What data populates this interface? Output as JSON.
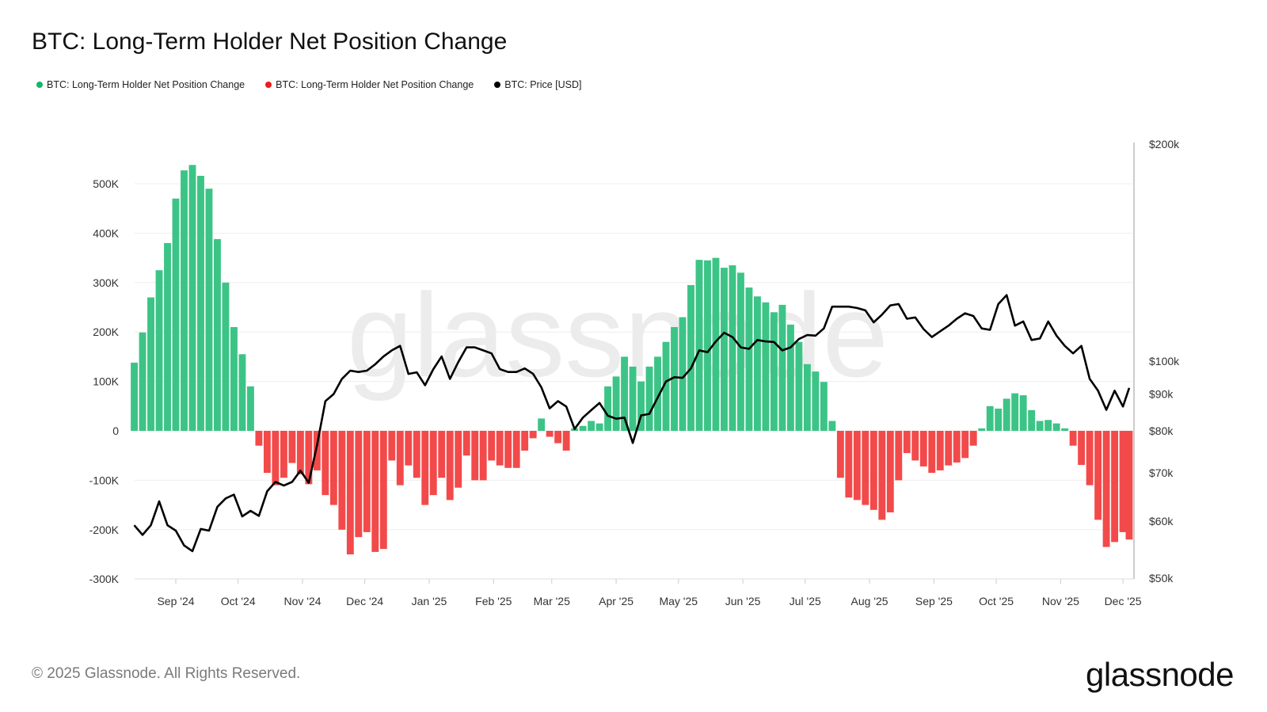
{
  "title": "BTC: Long-Term Holder Net Position Change",
  "legend": [
    {
      "label": "BTC: Long-Term Holder Net Position Change",
      "color": "#12b76a"
    },
    {
      "label": "BTC: Long-Term Holder Net Position Change",
      "color": "#f01b1b"
    },
    {
      "label": "BTC: Price [USD]",
      "color": "#000000"
    }
  ],
  "footer": "© 2025 Glassnode. All Rights Reserved.",
  "logo": "glassnode",
  "watermark": "glassnode",
  "chart_data": {
    "type": "bar",
    "title": "BTC: Long-Term Holder Net Position Change",
    "grid": true,
    "legend_position": "top-left",
    "colors": {
      "positive": "#3cc486",
      "negative": "#f24a4a",
      "price": "#000000"
    },
    "x_ticks": [
      {
        "date": "2024-09-01",
        "label": "Sep '24"
      },
      {
        "date": "2024-10-01",
        "label": "Oct '24"
      },
      {
        "date": "2024-11-01",
        "label": "Nov '24"
      },
      {
        "date": "2024-12-01",
        "label": "Dec '24"
      },
      {
        "date": "2025-01-01",
        "label": "Jan '25"
      },
      {
        "date": "2025-02-01",
        "label": "Feb '25"
      },
      {
        "date": "2025-03-01",
        "label": "Mar '25"
      },
      {
        "date": "2025-04-01",
        "label": "Apr '25"
      },
      {
        "date": "2025-05-01",
        "label": "May '25"
      },
      {
        "date": "2025-06-01",
        "label": "Jun '25"
      },
      {
        "date": "2025-07-01",
        "label": "Jul '25"
      },
      {
        "date": "2025-08-01",
        "label": "Aug '25"
      },
      {
        "date": "2025-09-01",
        "label": "Sep '25"
      },
      {
        "date": "2025-10-01",
        "label": "Oct '25"
      },
      {
        "date": "2025-11-01",
        "label": "Nov '25"
      },
      {
        "date": "2025-12-01",
        "label": "Dec '25"
      }
    ],
    "y_left": {
      "ylim": [
        -300000,
        500000
      ],
      "ticks": [
        {
          "value": 500000,
          "label": "500K"
        },
        {
          "value": 400000,
          "label": "400K"
        },
        {
          "value": 300000,
          "label": "300K"
        },
        {
          "value": 200000,
          "label": "200K"
        },
        {
          "value": 100000,
          "label": "100K"
        },
        {
          "value": 0,
          "label": "0"
        },
        {
          "value": -100000,
          "label": "-100K"
        },
        {
          "value": -200000,
          "label": "-200K"
        },
        {
          "value": -300000,
          "label": "-300K"
        }
      ]
    },
    "y_right": {
      "scale": "log",
      "ylim": [
        50000,
        200000
      ],
      "ticks": [
        {
          "value": 200000,
          "label": "$200k"
        },
        {
          "value": 100000,
          "label": "$100k"
        },
        {
          "value": 90000,
          "label": "$90k"
        },
        {
          "value": 80000,
          "label": "$80k"
        },
        {
          "value": 70000,
          "label": "$70k"
        },
        {
          "value": 60000,
          "label": "$60k"
        },
        {
          "value": 50000,
          "label": "$50k"
        }
      ]
    },
    "x": [
      "2024-08-12",
      "2024-08-16",
      "2024-08-20",
      "2024-08-24",
      "2024-08-28",
      "2024-09-01",
      "2024-09-05",
      "2024-09-09",
      "2024-09-13",
      "2024-09-17",
      "2024-09-21",
      "2024-09-25",
      "2024-09-29",
      "2024-10-03",
      "2024-10-07",
      "2024-10-11",
      "2024-10-15",
      "2024-10-19",
      "2024-10-23",
      "2024-10-27",
      "2024-10-31",
      "2024-11-04",
      "2024-11-08",
      "2024-11-12",
      "2024-11-16",
      "2024-11-20",
      "2024-11-24",
      "2024-11-28",
      "2024-12-02",
      "2024-12-06",
      "2024-12-10",
      "2024-12-14",
      "2024-12-18",
      "2024-12-22",
      "2024-12-26",
      "2024-12-30",
      "2025-01-03",
      "2025-01-07",
      "2025-01-11",
      "2025-01-15",
      "2025-01-19",
      "2025-01-23",
      "2025-01-27",
      "2025-01-31",
      "2025-02-04",
      "2025-02-08",
      "2025-02-12",
      "2025-02-16",
      "2025-02-20",
      "2025-02-24",
      "2025-02-28",
      "2025-03-04",
      "2025-03-08",
      "2025-03-12",
      "2025-03-16",
      "2025-03-20",
      "2025-03-24",
      "2025-03-28",
      "2025-04-01",
      "2025-04-05",
      "2025-04-09",
      "2025-04-13",
      "2025-04-17",
      "2025-04-21",
      "2025-04-25",
      "2025-04-29",
      "2025-05-03",
      "2025-05-07",
      "2025-05-11",
      "2025-05-15",
      "2025-05-19",
      "2025-05-23",
      "2025-05-27",
      "2025-05-31",
      "2025-06-04",
      "2025-06-08",
      "2025-06-12",
      "2025-06-16",
      "2025-06-20",
      "2025-06-24",
      "2025-06-28",
      "2025-07-02",
      "2025-07-06",
      "2025-07-10",
      "2025-07-14",
      "2025-07-18",
      "2025-07-22",
      "2025-07-26",
      "2025-07-30",
      "2025-08-03",
      "2025-08-07",
      "2025-08-11",
      "2025-08-15",
      "2025-08-19",
      "2025-08-23",
      "2025-08-27",
      "2025-08-31",
      "2025-09-04",
      "2025-09-08",
      "2025-09-12",
      "2025-09-16",
      "2025-09-20",
      "2025-09-24",
      "2025-09-28",
      "2025-10-02",
      "2025-10-06",
      "2025-10-10",
      "2025-10-14",
      "2025-10-18",
      "2025-10-22",
      "2025-10-26",
      "2025-10-30",
      "2025-11-03",
      "2025-11-07",
      "2025-11-11",
      "2025-11-15",
      "2025-11-19",
      "2025-11-23",
      "2025-11-27",
      "2025-12-01",
      "2025-12-04"
    ],
    "series": [
      {
        "name": "BTC: Long-Term Holder Net Position Change",
        "axis": "left",
        "type": "bar",
        "values": [
          138000,
          199000,
          270000,
          325000,
          380000,
          470000,
          527000,
          538000,
          516000,
          490000,
          388000,
          300000,
          210000,
          155000,
          90000,
          -30000,
          -85000,
          -110000,
          -95000,
          -65000,
          -88000,
          -108000,
          -80000,
          -130000,
          -150000,
          -200000,
          -250000,
          -215000,
          -205000,
          -245000,
          -239000,
          -60000,
          -110000,
          -70000,
          -95000,
          -150000,
          -130000,
          -95000,
          -140000,
          -115000,
          -50000,
          -100000,
          -100000,
          -60000,
          -70000,
          -75000,
          -75000,
          -40000,
          -15000,
          25000,
          -12000,
          -25000,
          -40000,
          5000,
          10000,
          20000,
          15000,
          90000,
          110000,
          150000,
          130000,
          100000,
          130000,
          150000,
          180000,
          210000,
          230000,
          295000,
          346000,
          345000,
          350000,
          330000,
          335000,
          320000,
          290000,
          272000,
          260000,
          240000,
          255000,
          215000,
          180000,
          135000,
          120000,
          99000,
          20000,
          -95000,
          -135000,
          -140000,
          -150000,
          -160000,
          -180000,
          -165000,
          -100000,
          -45000,
          -60000,
          -72000,
          -85000,
          -80000,
          -70000,
          -64000,
          -55000,
          -30000,
          5000,
          50000,
          45000,
          65000,
          76000,
          72000,
          42000,
          20000,
          22000,
          15000,
          5000,
          -30000,
          -69000,
          -110000,
          -180000,
          -235000,
          -225000,
          -205000,
          -220000
        ]
      },
      {
        "name": "BTC: Price [USD]",
        "axis": "right",
        "type": "line",
        "values": [
          59200,
          57400,
          59200,
          63900,
          59200,
          58200,
          55500,
          54500,
          58500,
          58200,
          62800,
          64500,
          65300,
          60900,
          62000,
          61000,
          66000,
          68000,
          67200,
          68000,
          70500,
          67800,
          76500,
          88000,
          90000,
          94500,
          97000,
          96600,
          97000,
          99000,
          101500,
          103500,
          105000,
          96000,
          96500,
          92600,
          97500,
          101500,
          94500,
          99700,
          104500,
          104500,
          103500,
          102500,
          97500,
          96600,
          96600,
          97700,
          96000,
          92000,
          86000,
          88000,
          86500,
          80500,
          83500,
          85500,
          87500,
          84000,
          83200,
          83500,
          77000,
          84100,
          84500,
          89000,
          93700,
          95000,
          94800,
          97700,
          103500,
          102900,
          106500,
          109500,
          108000,
          104500,
          104000,
          107000,
          106500,
          106300,
          103500,
          104500,
          107300,
          108700,
          108500,
          111000,
          119000,
          119000,
          119000,
          118500,
          117600,
          113200,
          116000,
          119500,
          120000,
          114500,
          115000,
          110800,
          108000,
          110000,
          112000,
          114500,
          116500,
          115500,
          111000,
          110500,
          120000,
          123500,
          112000,
          113500,
          107000,
          107500,
          113500,
          108500,
          105000,
          102500,
          105000,
          94500,
          91000,
          85600,
          91000,
          86500,
          91800
        ]
      }
    ]
  }
}
